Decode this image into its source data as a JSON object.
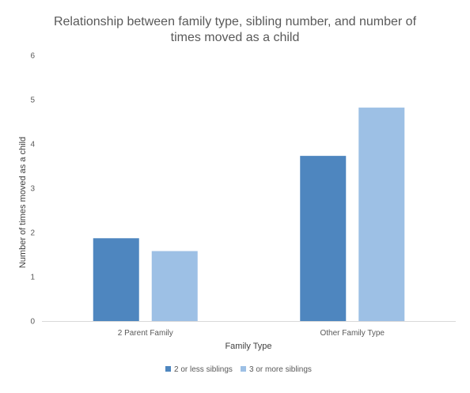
{
  "chart_data": {
    "type": "bar",
    "title_lines": [
      "Relationship between family type, sibling number, and number of",
      "times moved as a child"
    ],
    "xlabel": "Family Type",
    "ylabel": "Number of times moved as a child",
    "categories": [
      "2 Parent Family",
      "Other Family Type"
    ],
    "series": [
      {
        "name": "2 or less siblings",
        "color": "#4e86bf",
        "values": [
          1.87,
          3.73
        ]
      },
      {
        "name": "3 or more siblings",
        "color": "#9dc0e5",
        "values": [
          1.58,
          4.82
        ]
      }
    ],
    "ylim": [
      0,
      6
    ],
    "yticks": [
      0,
      1,
      2,
      3,
      4,
      5,
      6
    ],
    "grid": false,
    "legend_position": "bottom"
  }
}
